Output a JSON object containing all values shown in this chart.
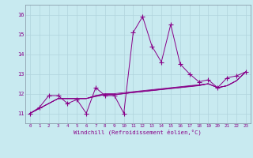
{
  "background_color": "#c8eaf0",
  "grid_color": "#b0d4dc",
  "line_color": "#880088",
  "xlabel": "Windchill (Refroidissement éolien,°C)",
  "xlabel_color": "#880088",
  "ylim": [
    10.5,
    16.5
  ],
  "xlim": [
    -0.5,
    23.5
  ],
  "yticks": [
    11,
    12,
    13,
    14,
    15,
    16
  ],
  "xticks": [
    0,
    1,
    2,
    3,
    4,
    5,
    6,
    7,
    8,
    9,
    10,
    11,
    12,
    13,
    14,
    15,
    16,
    17,
    18,
    19,
    20,
    21,
    22,
    23
  ],
  "series_main": [
    11.0,
    11.3,
    11.9,
    11.9,
    11.5,
    11.7,
    11.0,
    12.3,
    11.9,
    11.9,
    11.0,
    15.1,
    15.9,
    14.4,
    13.6,
    15.5,
    13.5,
    13.0,
    12.6,
    12.7,
    12.3,
    12.8,
    12.9,
    13.1
  ],
  "series_reg": [
    [
      11.0,
      11.25,
      11.5,
      11.75,
      11.75,
      11.75,
      11.75,
      11.9,
      12.0,
      12.0,
      12.05,
      12.1,
      12.15,
      12.2,
      12.25,
      12.3,
      12.35,
      12.4,
      12.45,
      12.5,
      12.3,
      12.4,
      12.65,
      13.1
    ],
    [
      11.0,
      11.25,
      11.5,
      11.75,
      11.75,
      11.75,
      11.75,
      11.85,
      11.95,
      11.95,
      12.0,
      12.05,
      12.1,
      12.15,
      12.2,
      12.25,
      12.3,
      12.35,
      12.4,
      12.5,
      12.3,
      12.4,
      12.65,
      13.1
    ],
    [
      11.0,
      11.25,
      11.5,
      11.75,
      11.75,
      11.75,
      11.75,
      11.9,
      11.95,
      11.95,
      12.0,
      12.07,
      12.12,
      12.17,
      12.22,
      12.28,
      12.32,
      12.38,
      12.42,
      12.5,
      12.3,
      12.4,
      12.65,
      13.1
    ],
    [
      11.0,
      11.25,
      11.5,
      11.75,
      11.75,
      11.75,
      11.75,
      11.88,
      11.95,
      11.95,
      12.0,
      12.06,
      12.11,
      12.16,
      12.21,
      12.27,
      12.31,
      12.37,
      12.41,
      12.5,
      12.3,
      12.4,
      12.65,
      13.1
    ]
  ]
}
